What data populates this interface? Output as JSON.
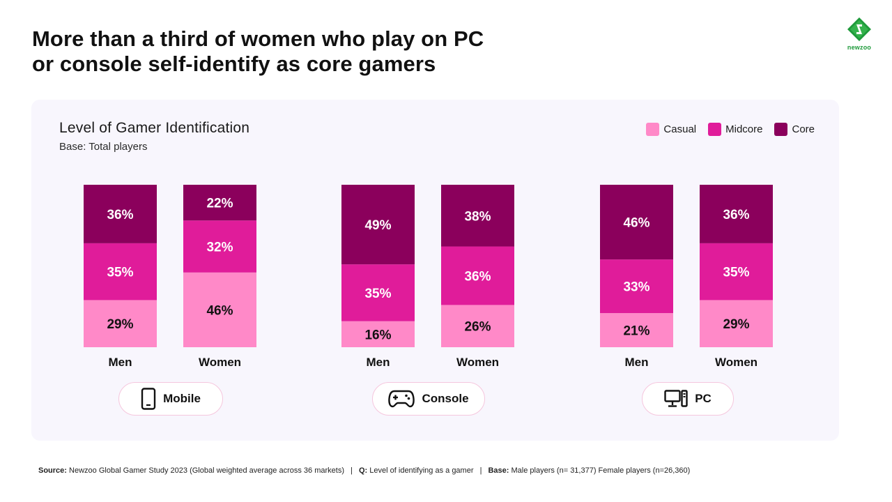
{
  "header": {
    "title_line1": "More than a third of women who play on PC",
    "title_line2": "or console self-identify as core gamers",
    "logo_text": "newzoo",
    "logo_color": "#1e9a3a"
  },
  "colors": {
    "Casual": "#ff89c8",
    "Midcore": "#e01c9a",
    "Core": "#8b005c",
    "panel_bg": "#f8f6fd"
  },
  "legend": [
    "Casual",
    "Midcore",
    "Core"
  ],
  "platforms": [
    {
      "label": "Mobile",
      "icon": "mobile-phone-icon"
    },
    {
      "label": "Console",
      "icon": "gamepad-icon"
    },
    {
      "label": "PC",
      "icon": "desktop-computer-icon"
    }
  ],
  "chart_data": {
    "type": "bar",
    "stacked": true,
    "title": "Level of Gamer Identification",
    "subtitle": "Base: Total players",
    "groups": [
      "Mobile",
      "Console",
      "PC"
    ],
    "categories": [
      "Men",
      "Women",
      "Men",
      "Women",
      "Men",
      "Women"
    ],
    "series": [
      {
        "name": "Casual",
        "values": [
          29,
          46,
          16,
          26,
          21,
          29
        ]
      },
      {
        "name": "Midcore",
        "values": [
          35,
          32,
          35,
          36,
          33,
          35
        ]
      },
      {
        "name": "Core",
        "values": [
          36,
          22,
          49,
          38,
          46,
          36
        ]
      }
    ],
    "ylim": [
      0,
      100
    ],
    "legend_position": "top-right",
    "grid": false
  },
  "footer": {
    "source_label": "Source:",
    "source_text": "Newzoo Global Gamer Study 2023 (Global weighted average across 36 markets)",
    "sep": "|",
    "q_label": "Q:",
    "q_text": "Level of identifying as a gamer",
    "base_label": "Base:",
    "base_text": "Male players (n= 31,377) Female players (n=26,360)"
  }
}
